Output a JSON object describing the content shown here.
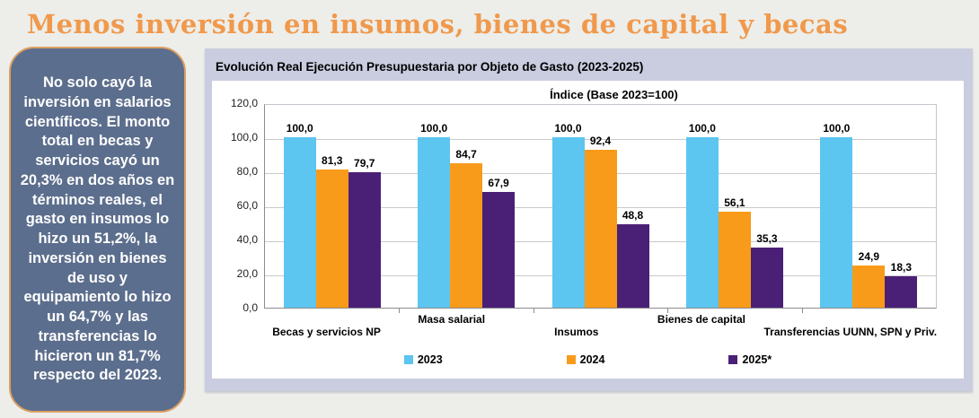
{
  "page": {
    "title": "Menos inversión en insumos, bienes de capital y becas",
    "title_color": "#F0994C",
    "background_color": "#EDEEEA"
  },
  "sidebar": {
    "text": "No solo cayó la inversión en salarios científicos. El monto total en becas y servicios cayó un 20,3% en dos años en términos reales, el gasto en insumos lo hizo un 51,2%, la inversión en bienes de uso y equipamiento lo hizo un 64,7% y las transferencias lo hicieron un 81,7% respecto del 2023.",
    "background_color": "#5C6E8D",
    "border_color": "#DC9F62",
    "text_color": "#FFFFFF"
  },
  "panel": {
    "title": "Evolución Real Ejecución Presupuestaria por Objeto de Gasto (2023-2025)",
    "background_color": "#C9CDDF"
  },
  "chart_data": {
    "type": "bar",
    "title": "Índice (Base 2023=100)",
    "categories": [
      "Becas y servicios NP",
      "Masa salarial",
      "Insumos",
      "Bienes de capital",
      "Transferencias UUNN, SPN y Priv."
    ],
    "series": [
      {
        "name": "2023",
        "color": "#5CC5F0",
        "values": [
          100.0,
          100.0,
          100.0,
          100.0,
          100.0
        ]
      },
      {
        "name": "2024",
        "color": "#F89B1A",
        "values": [
          81.3,
          84.7,
          92.4,
          56.1,
          24.9
        ]
      },
      {
        "name": "2025*",
        "color": "#4A2077",
        "values": [
          79.7,
          67.9,
          48.8,
          35.3,
          18.3
        ]
      }
    ],
    "value_label_format": "comma-decimal-1",
    "y_ticks": [
      "120,0",
      "100,0",
      "80,0",
      "60,0",
      "40,0",
      "20,0",
      "0,0"
    ],
    "ylim": [
      0,
      120
    ],
    "grid": true,
    "xlabel": "",
    "ylabel": "",
    "legend_position": "bottom"
  }
}
